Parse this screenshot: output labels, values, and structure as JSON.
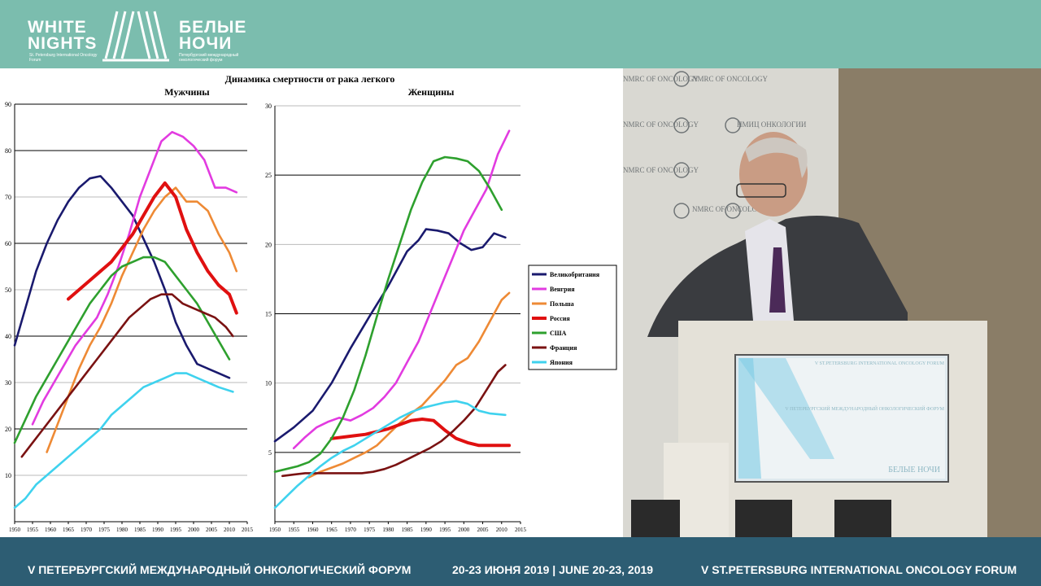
{
  "header": {
    "logo_en_line1": "WHITE",
    "logo_en_line2": "NIGHTS",
    "logo_en_sub": "St. Petersburg International Oncology Forum",
    "logo_ru_line1": "БЕЛЫЕ",
    "logo_ru_line2": "НОЧИ",
    "logo_ru_sub": "Петербургский международный онкологический форум"
  },
  "footer": {
    "left": "V ПЕТЕРБУРГСКИЙ МЕЖДУНАРОДНЫЙ ОНКОЛОГИЧЕСКИЙ ФОРУМ",
    "middle": "20-23 ИЮНЯ 2019 | JUNE 20-23, 2019",
    "right": "V ST.PETERSBURG INTERNATIONAL ONCOLOGY FORUM"
  },
  "video": {
    "wall_logo_1": "NMRC OF ONCOLOGY",
    "wall_logo_2": "НМИЦ ОНКОЛОГИИ",
    "screen_line1": "V ST.PETERSBURG INTERNATIONAL ONCOLOGY FORUM",
    "screen_line2": "V ПЕТЕРБУРГСКИЙ МЕЖДУНАРОДНЫЙ ОНКОЛОГИЧЕСКИЙ ФОРУМ",
    "screen_logo": "БЕЛЫЕ НОЧИ"
  },
  "slide": {
    "title": "Динамика смертности от рака легкого"
  },
  "colors": {
    "Великобритания": "#1a1a6e",
    "Венгрия": "#e23be0",
    "Польша": "#ee8a35",
    "Россия": "#e01010",
    "США": "#2ea02e",
    "Франция": "#7a1212",
    "Япония": "#3fd2ee"
  },
  "chart_data": [
    {
      "type": "line",
      "title": "Мужчины",
      "xlim": [
        1950,
        2015
      ],
      "ylim": [
        0,
        90
      ],
      "xticks": [
        1950,
        1955,
        1960,
        1965,
        1970,
        1975,
        1980,
        1985,
        1990,
        1995,
        2000,
        2005,
        2010,
        2015
      ],
      "yticks": [
        10,
        20,
        30,
        40,
        50,
        60,
        70,
        80,
        90
      ],
      "grid": "horizontal",
      "series": [
        {
          "name": "Великобритания",
          "x": [
            1950,
            1953,
            1956,
            1959,
            1962,
            1965,
            1968,
            1971,
            1974,
            1977,
            1980,
            1983,
            1986,
            1989,
            1992,
            1995,
            1998,
            2001,
            2004,
            2007,
            2010
          ],
          "y": [
            38,
            46,
            54,
            60,
            65,
            69,
            72,
            74,
            74.5,
            72,
            69,
            66,
            61,
            56,
            50,
            43,
            38,
            34,
            33,
            32,
            31
          ]
        },
        {
          "name": "Венгрия",
          "x": [
            1955,
            1958,
            1961,
            1964,
            1967,
            1970,
            1973,
            1976,
            1979,
            1982,
            1985,
            1988,
            1991,
            1994,
            1997,
            2000,
            2003,
            2006,
            2009,
            2012
          ],
          "y": [
            21,
            26,
            30,
            34,
            38,
            41,
            44,
            49,
            55,
            62,
            70,
            76,
            82,
            84,
            83,
            81,
            78,
            72,
            72,
            71
          ]
        },
        {
          "name": "Польша",
          "x": [
            1959,
            1962,
            1965,
            1968,
            1971,
            1974,
            1977,
            1980,
            1983,
            1986,
            1989,
            1992,
            1995,
            1998,
            2001,
            2004,
            2007,
            2010,
            2012
          ],
          "y": [
            15,
            21,
            27,
            33,
            38,
            42,
            47,
            53,
            58,
            63,
            67,
            70,
            72,
            69,
            69,
            67,
            62,
            58,
            54
          ]
        },
        {
          "name": "Россия",
          "x": [
            1965,
            1968,
            1971,
            1974,
            1977,
            1980,
            1983,
            1986,
            1989,
            1992,
            1995,
            1998,
            2001,
            2004,
            2007,
            2010,
            2012
          ],
          "y": [
            48,
            50,
            52,
            54,
            56,
            59,
            62,
            66,
            70,
            73,
            70,
            63,
            58,
            54,
            51,
            49,
            45
          ]
        },
        {
          "name": "США",
          "x": [
            1950,
            1953,
            1956,
            1959,
            1962,
            1965,
            1968,
            1971,
            1974,
            1977,
            1980,
            1983,
            1986,
            1989,
            1992,
            1995,
            1998,
            2001,
            2004,
            2007,
            2010
          ],
          "y": [
            17,
            22,
            27,
            31,
            35,
            39,
            43,
            47,
            50,
            53,
            55,
            56,
            57,
            57,
            56,
            53,
            50,
            47,
            43,
            39,
            35
          ]
        },
        {
          "name": "Франция",
          "x": [
            1952,
            1955,
            1958,
            1961,
            1964,
            1967,
            1970,
            1973,
            1976,
            1979,
            1982,
            1985,
            1988,
            1991,
            1994,
            1997,
            2000,
            2003,
            2006,
            2009,
            2011
          ],
          "y": [
            14,
            17,
            20,
            23,
            26,
            29,
            32,
            35,
            38,
            41,
            44,
            46,
            48,
            49,
            49,
            47,
            46,
            45,
            44,
            42,
            40
          ]
        },
        {
          "name": "Япония",
          "x": [
            1950,
            1953,
            1956,
            1959,
            1962,
            1965,
            1968,
            1971,
            1974,
            1977,
            1980,
            1983,
            1986,
            1989,
            1992,
            1995,
            1998,
            2001,
            2004,
            2007,
            2011
          ],
          "y": [
            3,
            5,
            8,
            10,
            12,
            14,
            16,
            18,
            20,
            23,
            25,
            27,
            29,
            30,
            31,
            32,
            32,
            31,
            30,
            29,
            28
          ]
        }
      ]
    },
    {
      "type": "line",
      "title": "Женщины",
      "xlim": [
        1950,
        2015
      ],
      "ylim": [
        0,
        30
      ],
      "xticks": [
        1950,
        1955,
        1960,
        1965,
        1970,
        1975,
        1980,
        1985,
        1990,
        1995,
        2000,
        2005,
        2010,
        2015
      ],
      "yticks": [
        5,
        10,
        15,
        20,
        25,
        30
      ],
      "grid": "horizontal",
      "legend": "right",
      "series": [
        {
          "name": "Великобритания",
          "x": [
            1950,
            1955,
            1960,
            1965,
            1970,
            1975,
            1980,
            1985,
            1988,
            1990,
            1993,
            1996,
            1999,
            2002,
            2005,
            2008,
            2011
          ],
          "y": [
            5.8,
            6.8,
            8,
            10,
            12.5,
            14.8,
            17,
            19.5,
            20.3,
            21.1,
            21,
            20.8,
            20.1,
            19.6,
            19.8,
            20.8,
            20.5
          ]
        },
        {
          "name": "Венгрия",
          "x": [
            1955,
            1958,
            1961,
            1964,
            1967,
            1970,
            1973,
            1976,
            1979,
            1982,
            1985,
            1988,
            1991,
            1994,
            1997,
            2000,
            2003,
            2006,
            2009,
            2012
          ],
          "y": [
            5.3,
            6.1,
            6.8,
            7.2,
            7.5,
            7.3,
            7.7,
            8.2,
            9,
            10,
            11.5,
            13,
            15,
            17,
            19,
            21,
            22.5,
            24,
            26.5,
            28.2
          ]
        },
        {
          "name": "Польша",
          "x": [
            1959,
            1962,
            1965,
            1968,
            1971,
            1974,
            1977,
            1980,
            1983,
            1986,
            1989,
            1992,
            1995,
            1998,
            2001,
            2004,
            2007,
            2010,
            2012
          ],
          "y": [
            3.2,
            3.6,
            3.9,
            4.2,
            4.6,
            5,
            5.5,
            6.3,
            7.1,
            7.8,
            8.4,
            9.3,
            10.2,
            11.3,
            11.8,
            13,
            14.5,
            16,
            16.5
          ]
        },
        {
          "name": "Россия",
          "x": [
            1965,
            1968,
            1971,
            1974,
            1977,
            1980,
            1983,
            1986,
            1989,
            1992,
            1995,
            1998,
            2001,
            2004,
            2007,
            2010,
            2012
          ],
          "y": [
            6,
            6.1,
            6.2,
            6.3,
            6.5,
            6.7,
            7,
            7.3,
            7.4,
            7.3,
            6.6,
            6,
            5.7,
            5.5,
            5.5,
            5.5,
            5.5
          ]
        },
        {
          "name": "США",
          "x": [
            1950,
            1953,
            1956,
            1959,
            1962,
            1965,
            1968,
            1971,
            1974,
            1977,
            1980,
            1983,
            1986,
            1989,
            1992,
            1995,
            1998,
            2001,
            2004,
            2007,
            2010
          ],
          "y": [
            3.6,
            3.8,
            4,
            4.3,
            4.9,
            6,
            7.5,
            9.5,
            12,
            14.8,
            17.5,
            20,
            22.5,
            24.5,
            26,
            26.3,
            26.2,
            26,
            25.3,
            24,
            22.5
          ]
        },
        {
          "name": "Франция",
          "x": [
            1952,
            1955,
            1958,
            1961,
            1964,
            1967,
            1970,
            1973,
            1976,
            1979,
            1982,
            1985,
            1988,
            1991,
            1994,
            1997,
            2000,
            2003,
            2006,
            2009,
            2011
          ],
          "y": [
            3.3,
            3.4,
            3.5,
            3.5,
            3.5,
            3.5,
            3.5,
            3.5,
            3.6,
            3.8,
            4.1,
            4.5,
            4.9,
            5.3,
            5.8,
            6.5,
            7.3,
            8.2,
            9.5,
            10.8,
            11.3
          ]
        },
        {
          "name": "Япония",
          "x": [
            1950,
            1953,
            1956,
            1959,
            1962,
            1965,
            1968,
            1971,
            1974,
            1977,
            1980,
            1983,
            1986,
            1989,
            1992,
            1995,
            1998,
            2001,
            2004,
            2007,
            2011
          ],
          "y": [
            1,
            1.8,
            2.6,
            3.3,
            4,
            4.6,
            5.1,
            5.5,
            6,
            6.5,
            7,
            7.5,
            7.9,
            8.2,
            8.4,
            8.6,
            8.7,
            8.5,
            8,
            7.8,
            7.7
          ]
        }
      ]
    }
  ]
}
